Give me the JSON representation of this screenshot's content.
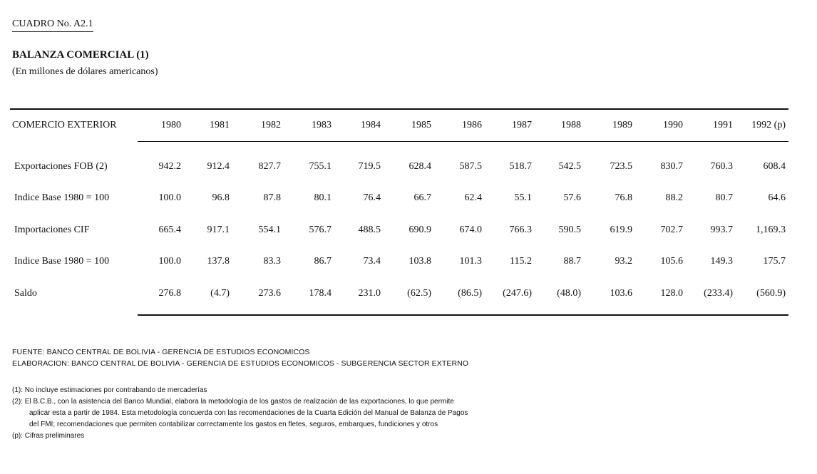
{
  "document": {
    "label": "CUADRO No. A2.1",
    "title": "BALANZA COMERCIAL (1)",
    "subtitle": "(En millones de dólares americanos)"
  },
  "table": {
    "header_label": "COMERCIO EXTERIOR",
    "years": [
      "1980",
      "1981",
      "1982",
      "1983",
      "1984",
      "1985",
      "1986",
      "1987",
      "1988",
      "1989",
      "1990",
      "1991",
      "1992 (p)"
    ],
    "rows": [
      {
        "label": "Exportaciones FOB (2)",
        "values": [
          "942.2",
          "912.4",
          "827.7",
          "755.1",
          "719.5",
          "628.4",
          "587.5",
          "518.7",
          "542.5",
          "723.5",
          "830.7",
          "760.3",
          "608.4"
        ]
      },
      {
        "label": "Indice Base 1980 = 100",
        "values": [
          "100.0",
          "96.8",
          "87.8",
          "80.1",
          "76.4",
          "66.7",
          "62.4",
          "55.1",
          "57.6",
          "76.8",
          "88.2",
          "80.7",
          "64.6"
        ]
      },
      {
        "label": "Importaciones CIF",
        "values": [
          "665.4",
          "917.1",
          "554.1",
          "576.7",
          "488.5",
          "690.9",
          "674.0",
          "766.3",
          "590.5",
          "619.9",
          "702.7",
          "993.7",
          "1,169.3"
        ]
      },
      {
        "label": "Indice Base 1980 = 100",
        "values": [
          "100.0",
          "137.8",
          "83.3",
          "86.7",
          "73.4",
          "103.8",
          "101.3",
          "115.2",
          "88.7",
          "93.2",
          "105.6",
          "149.3",
          "175.7"
        ]
      },
      {
        "label": "Saldo",
        "values": [
          "276.8",
          "(4.7)",
          "273.6",
          "178.4",
          "231.0",
          "(62.5)",
          "(86.5)",
          "(247.6)",
          "(48.0)",
          "103.6",
          "128.0",
          "(233.4)",
          "(560.9)"
        ]
      }
    ]
  },
  "notes": {
    "fuente": "FUENTE: BANCO CENTRAL DE BOLIVIA - GERENCIA DE ESTUDIOS ECONOMICOS",
    "elaboracion": "ELABORACION: BANCO CENTRAL DE BOLIVIA - GERENCIA DE ESTUDIOS ECONOMICOS - SUBGERENCIA SECTOR EXTERNO",
    "footnote_1": "(1): No incluye estimaciones por contrabando de mercaderías",
    "footnote_2_line1": "(2): El B.C.B., con la asistencia del Banco Mundial, elabora la metodología de los gastos de realización de las exportaciones, lo que permite",
    "footnote_2_line2": "aplicar esta a partir de 1984. Esta metodología concuerda con las recomendaciones de la Cuarta Edición del Manual de Balanza de Pagos",
    "footnote_2_line3": "del FMI; recomendaciones que permiten contabilizar correctamente los gastos en fletes, seguros, embarques, fundiciones y otros",
    "footnote_p": "(p): Cifras preliminares"
  }
}
